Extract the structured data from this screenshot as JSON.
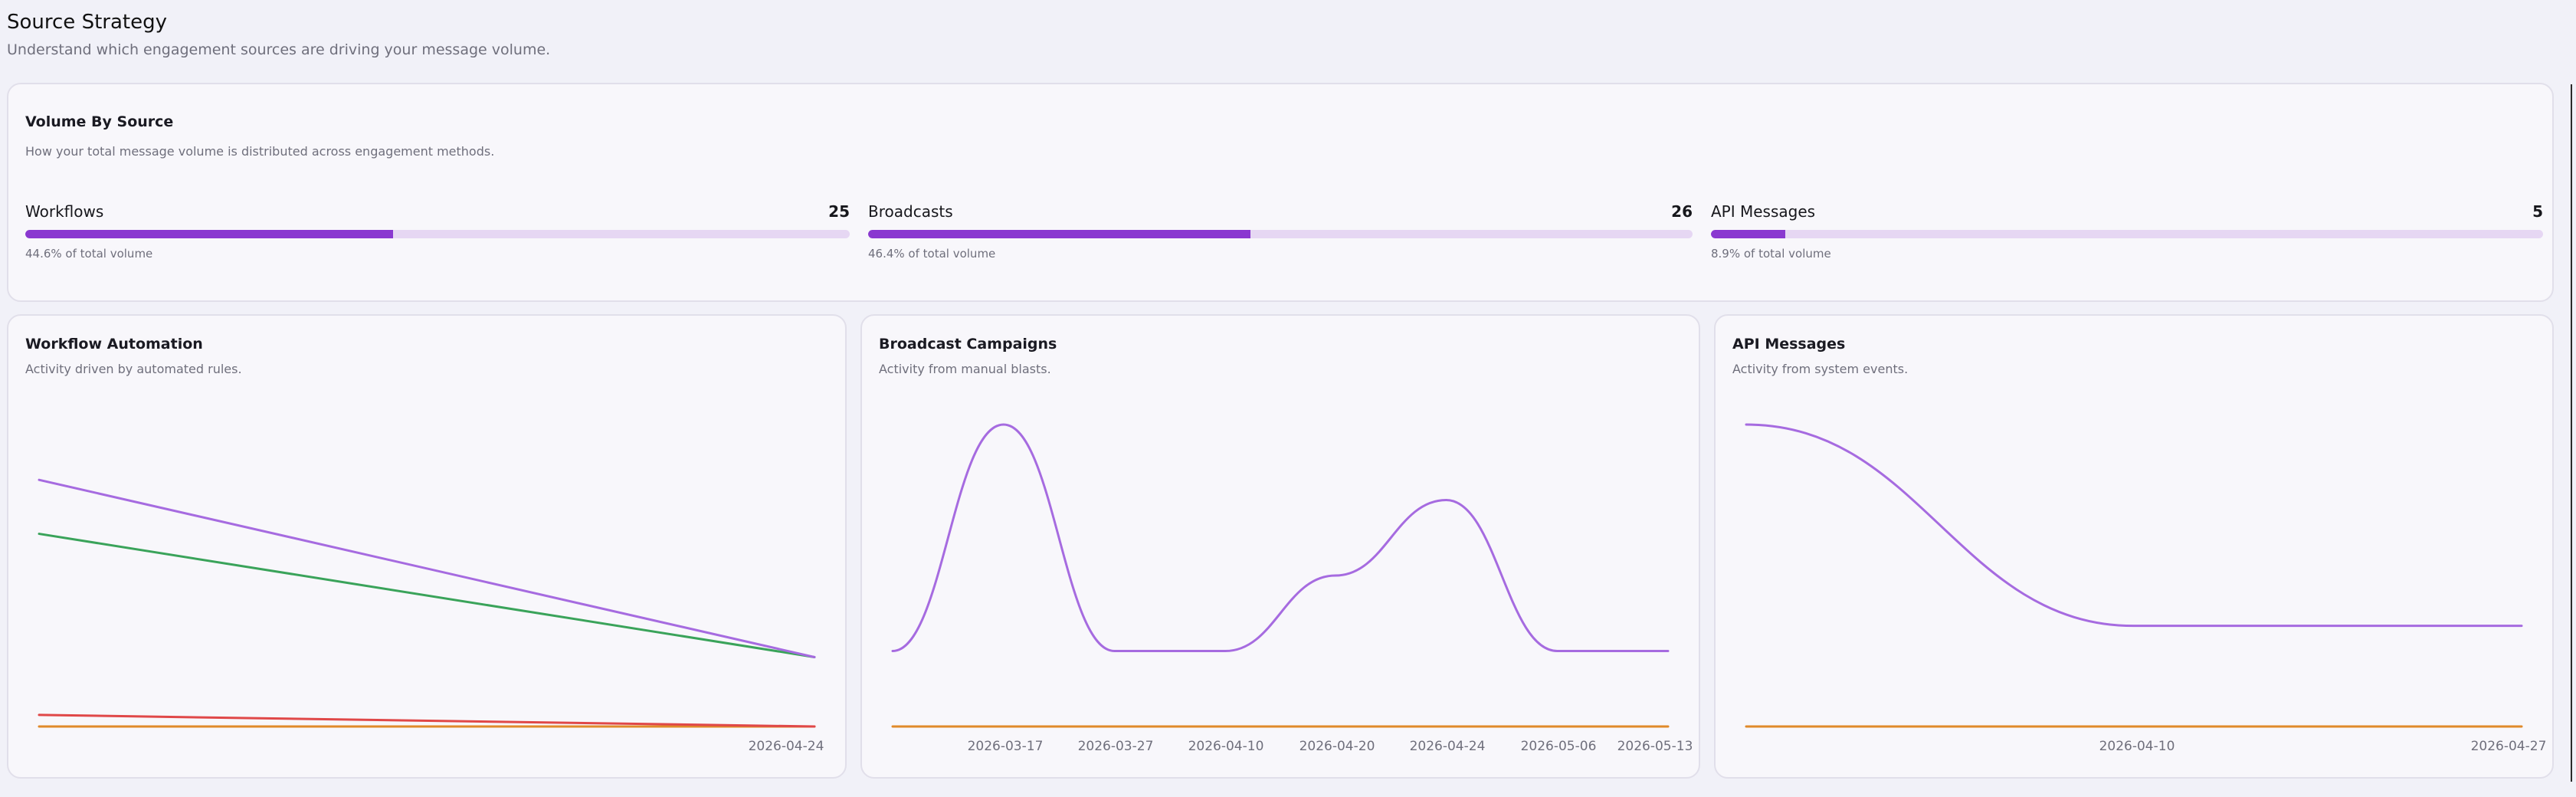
{
  "header": {
    "title": "Source Strategy",
    "subtitle": "Understand which engagement sources are driving your message volume."
  },
  "volume": {
    "title": "Volume By Source",
    "subtitle": "How your total message volume is distributed across engagement methods.",
    "sources": [
      {
        "label": "Workflows",
        "count": "25",
        "pct_text": "44.6% of total volume",
        "fraction": 0.446
      },
      {
        "label": "Broadcasts",
        "count": "26",
        "pct_text": "46.4% of total volume",
        "fraction": 0.464
      },
      {
        "label": "API Messages",
        "count": "5",
        "pct_text": "8.9% of total volume",
        "fraction": 0.089
      }
    ]
  },
  "colors": {
    "purple": "#a66be0",
    "green": "#3aa35a",
    "red": "#e04848",
    "orange": "#e08a2a",
    "bar_fill": "#8a38d0",
    "bar_track": "#e6d7f3"
  },
  "cards": [
    {
      "title": "Workflow Automation",
      "subtitle": "Activity driven by automated rules."
    },
    {
      "title": "Broadcast Campaigns",
      "subtitle": "Activity from manual blasts."
    },
    {
      "title": "API Messages",
      "subtitle": "Activity from system events."
    }
  ],
  "chart_data": [
    {
      "type": "line",
      "title": "Workflow Automation",
      "x_tick_labels": [
        "2026-04-24"
      ],
      "series": [
        {
          "color": "#a66be0",
          "values": [
            6.4,
            1.8
          ]
        },
        {
          "color": "#3aa35a",
          "values": [
            5.0,
            1.8
          ]
        },
        {
          "color": "#e04848",
          "values": [
            0.3,
            0
          ]
        },
        {
          "color": "#e08a2a",
          "values": [
            0,
            0
          ]
        }
      ],
      "ylim": [
        0,
        7
      ],
      "grid": false
    },
    {
      "type": "line",
      "title": "Broadcast Campaigns",
      "x_tick_labels": [
        "2026-03-17",
        "2026-03-27",
        "2026-04-10",
        "2026-04-20",
        "2026-04-24",
        "2026-05-06",
        "2026-05-13"
      ],
      "series": [
        {
          "color": "#a66be0",
          "values": [
            1,
            4,
            1,
            1,
            2,
            3,
            1,
            1
          ]
        },
        {
          "color": "#e08a2a",
          "values": [
            0,
            0,
            0,
            0,
            0,
            0,
            0,
            0
          ]
        }
      ],
      "ylim": [
        0,
        4
      ],
      "grid": false
    },
    {
      "type": "line",
      "title": "API Messages",
      "x_tick_labels": [
        "2026-04-10",
        "2026-04-27"
      ],
      "series": [
        {
          "color": "#a66be0",
          "values": [
            3,
            1,
            1
          ]
        },
        {
          "color": "#e08a2a",
          "values": [
            0,
            0,
            0
          ]
        }
      ],
      "ylim": [
        0,
        3
      ],
      "grid": false
    }
  ]
}
